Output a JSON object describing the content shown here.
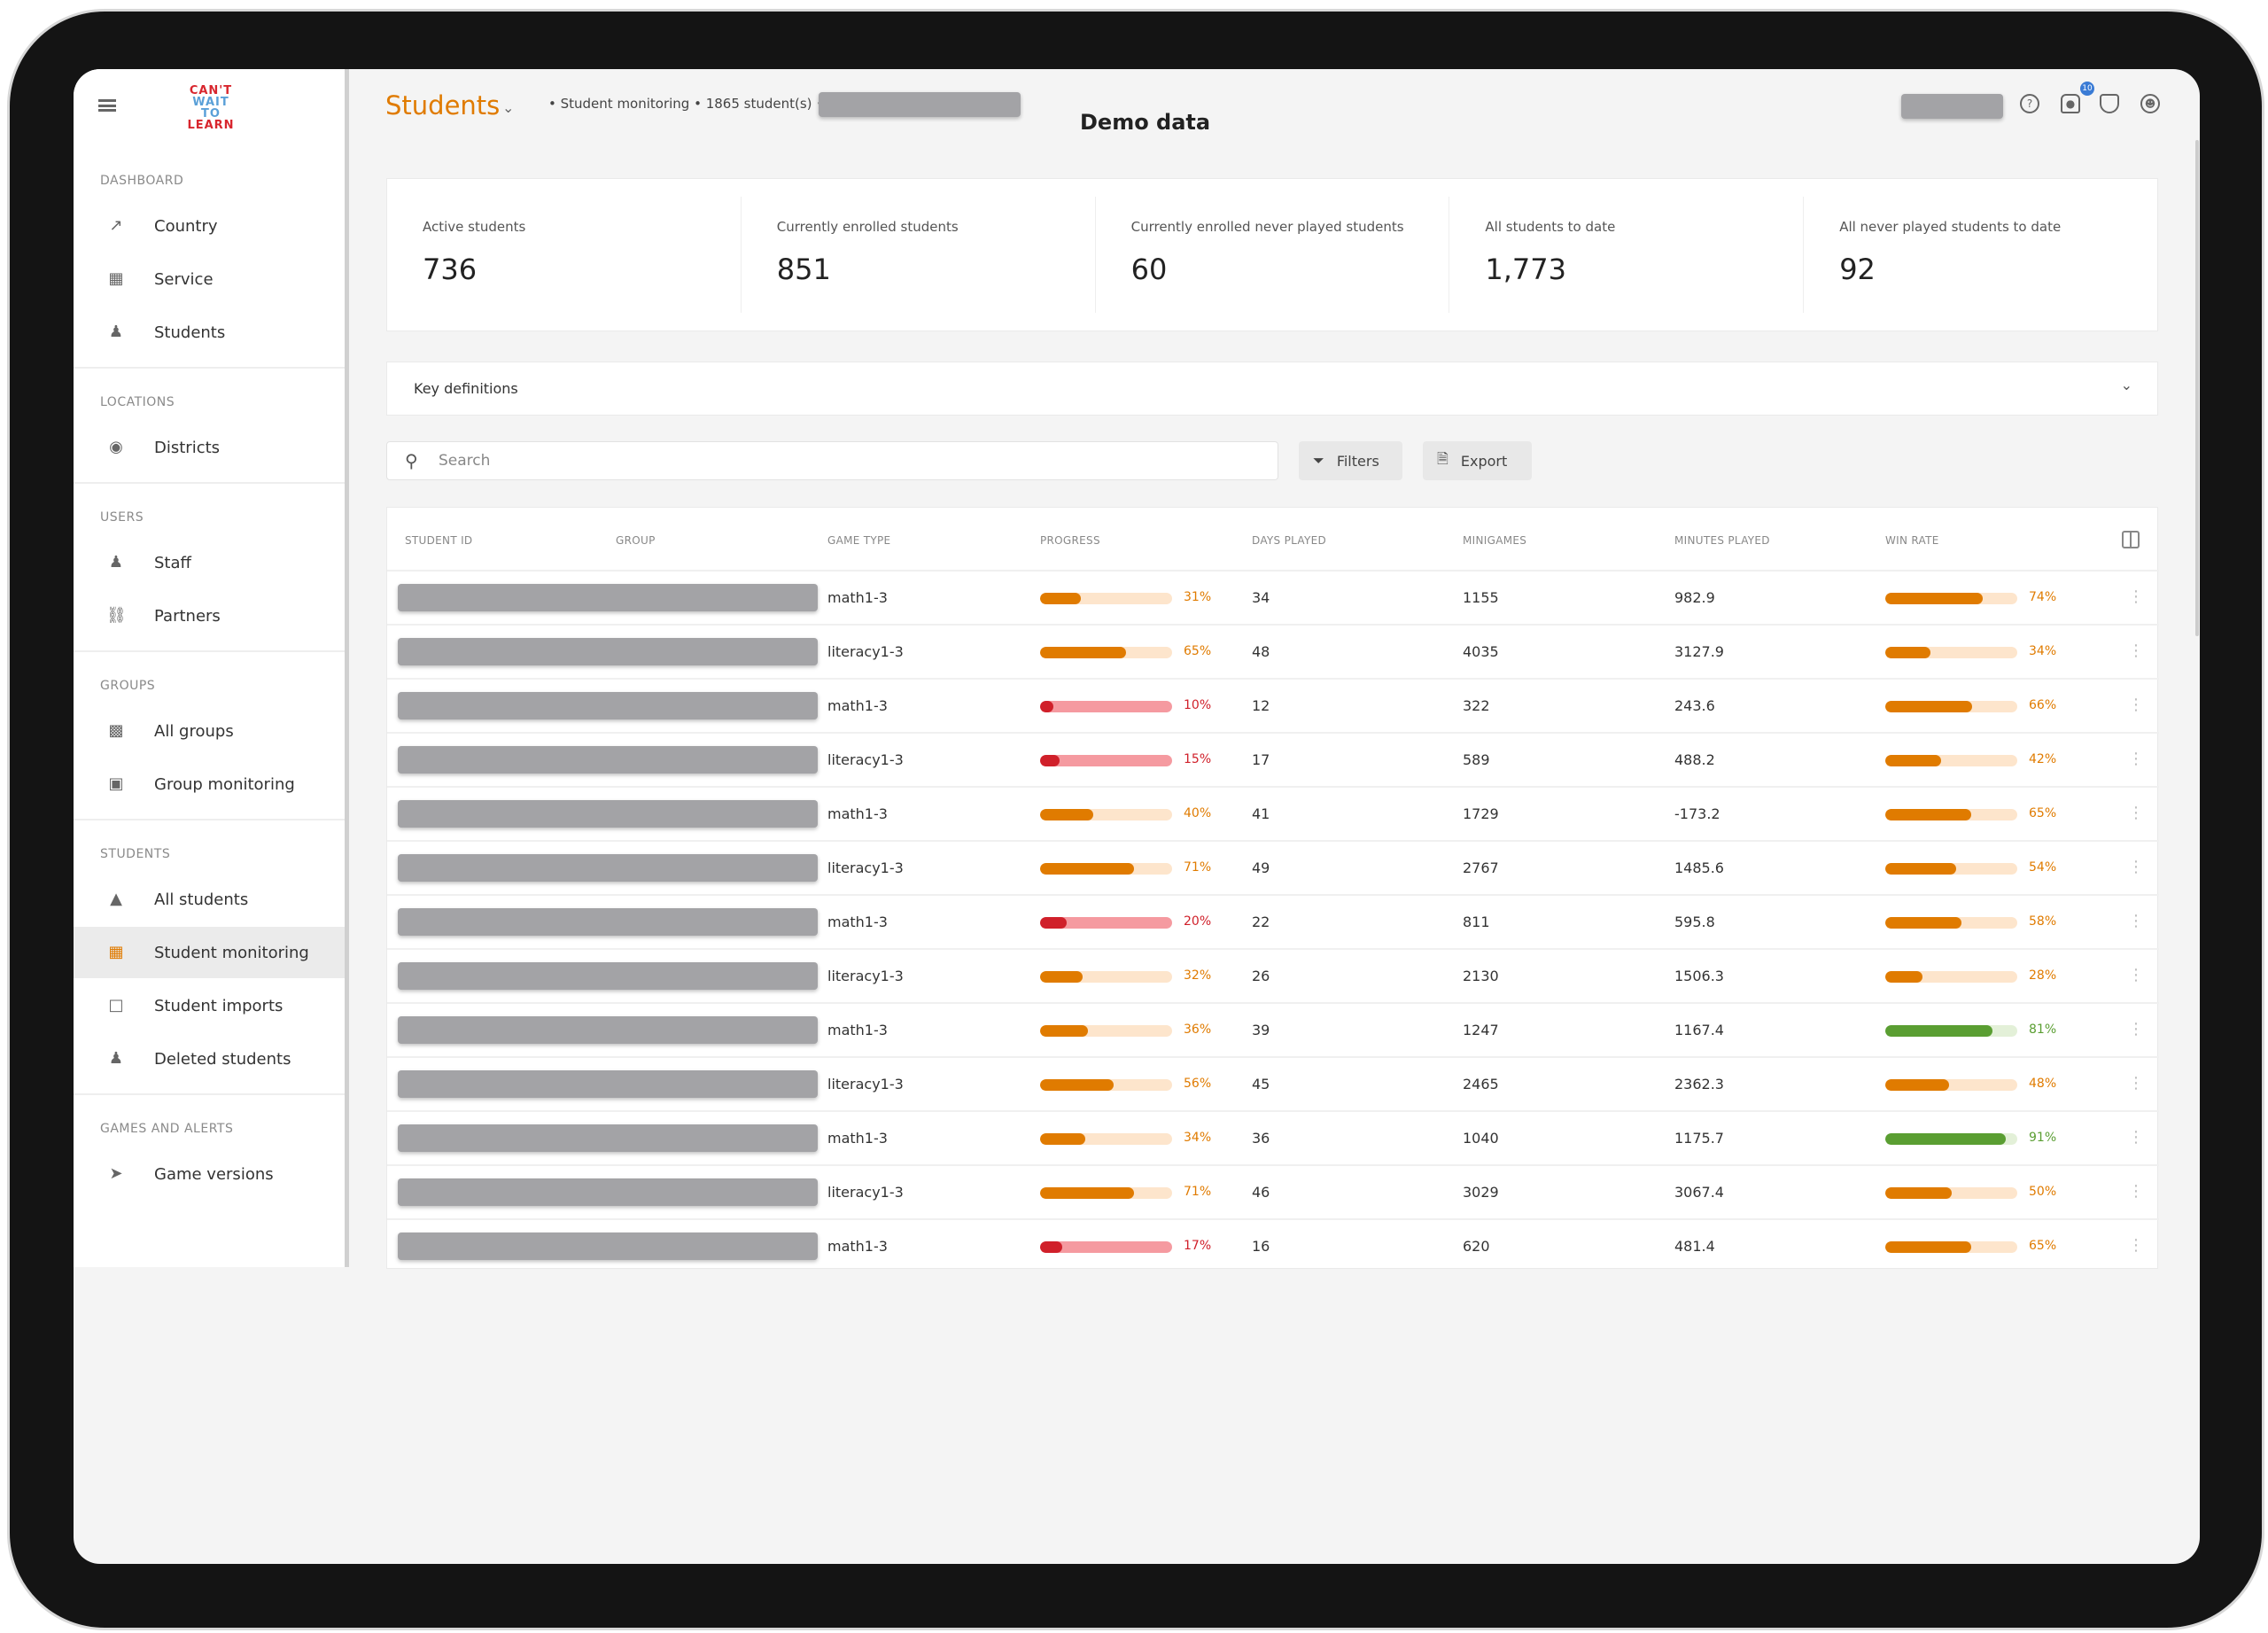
{
  "header": {
    "title": "Students",
    "breadcrumb": [
      "Student monitoring",
      "1865 student(s)"
    ],
    "demo_label": "Demo data",
    "notification_count": "10"
  },
  "sidebar": {
    "sections": [
      {
        "label": "DASHBOARD",
        "items": [
          {
            "label": "Country",
            "icon": "chart-line-icon"
          },
          {
            "label": "Service",
            "icon": "building-icon"
          },
          {
            "label": "Students",
            "icon": "users-icon"
          }
        ]
      },
      {
        "label": "LOCATIONS",
        "items": [
          {
            "label": "Districts",
            "icon": "map-pin-icon"
          }
        ]
      },
      {
        "label": "USERS",
        "items": [
          {
            "label": "Staff",
            "icon": "users-icon"
          },
          {
            "label": "Partners",
            "icon": "handshake-icon"
          }
        ]
      },
      {
        "label": "GROUPS",
        "items": [
          {
            "label": "All groups",
            "icon": "groups-icon"
          },
          {
            "label": "Group monitoring",
            "icon": "monitor-icon"
          }
        ]
      },
      {
        "label": "STUDENTS",
        "items": [
          {
            "label": "All students",
            "icon": "graduation-cap-icon"
          },
          {
            "label": "Student monitoring",
            "icon": "table-icon",
            "active": true
          },
          {
            "label": "Student imports",
            "icon": "file-import-icon"
          },
          {
            "label": "Deleted students",
            "icon": "user-remove-icon"
          }
        ]
      },
      {
        "label": "GAMES AND ALERTS",
        "items": [
          {
            "label": "Game versions",
            "icon": "rocket-icon"
          }
        ]
      }
    ]
  },
  "stats": [
    {
      "label": "Active students",
      "value": "736"
    },
    {
      "label": "Currently enrolled students",
      "value": "851"
    },
    {
      "label": "Currently enrolled never played students",
      "value": "60"
    },
    {
      "label": "All students to date",
      "value": "1,773"
    },
    {
      "label": "All never played students to date",
      "value": "92"
    }
  ],
  "key_definitions": "Key definitions",
  "toolbar": {
    "search_placeholder": "Search",
    "filters": "Filters",
    "export": "Export"
  },
  "colors": {
    "accent": "#e07b00",
    "bar_bg": "#fde5cc",
    "red": "#d0202a",
    "red_bg": "#f59aa0",
    "green": "#5a9e32",
    "green_bg": "#e3f0d8"
  },
  "table": {
    "columns": [
      "STUDENT ID",
      "GROUP",
      "GAME TYPE",
      "PROGRESS",
      "DAYS PLAYED",
      "MINIGAMES",
      "MINUTES PLAYED",
      "WIN RATE"
    ],
    "rows": [
      {
        "game": "math1-3",
        "progress": 31,
        "days": "34",
        "minigames": "1155",
        "minutes": "982.9",
        "win": 74
      },
      {
        "game": "literacy1-3",
        "progress": 65,
        "days": "48",
        "minigames": "4035",
        "minutes": "3127.9",
        "win": 34
      },
      {
        "game": "math1-3",
        "progress": 10,
        "days": "12",
        "minigames": "322",
        "minutes": "243.6",
        "win": 66
      },
      {
        "game": "literacy1-3",
        "progress": 15,
        "days": "17",
        "minigames": "589",
        "minutes": "488.2",
        "win": 42
      },
      {
        "game": "math1-3",
        "progress": 40,
        "days": "41",
        "minigames": "1729",
        "minutes": "-173.2",
        "win": 65
      },
      {
        "game": "literacy1-3",
        "progress": 71,
        "days": "49",
        "minigames": "2767",
        "minutes": "1485.6",
        "win": 54
      },
      {
        "game": "math1-3",
        "progress": 20,
        "days": "22",
        "minigames": "811",
        "minutes": "595.8",
        "win": 58
      },
      {
        "game": "literacy1-3",
        "progress": 32,
        "days": "26",
        "minigames": "2130",
        "minutes": "1506.3",
        "win": 28
      },
      {
        "game": "math1-3",
        "progress": 36,
        "days": "39",
        "minigames": "1247",
        "minutes": "1167.4",
        "win": 81
      },
      {
        "game": "literacy1-3",
        "progress": 56,
        "days": "45",
        "minigames": "2465",
        "minutes": "2362.3",
        "win": 48
      },
      {
        "game": "math1-3",
        "progress": 34,
        "days": "36",
        "minigames": "1040",
        "minutes": "1175.7",
        "win": 91
      },
      {
        "game": "literacy1-3",
        "progress": 71,
        "days": "46",
        "minigames": "3029",
        "minutes": "3067.4",
        "win": 50
      },
      {
        "game": "math1-3",
        "progress": 17,
        "days": "16",
        "minigames": "620",
        "minutes": "481.4",
        "win": 65
      }
    ]
  }
}
